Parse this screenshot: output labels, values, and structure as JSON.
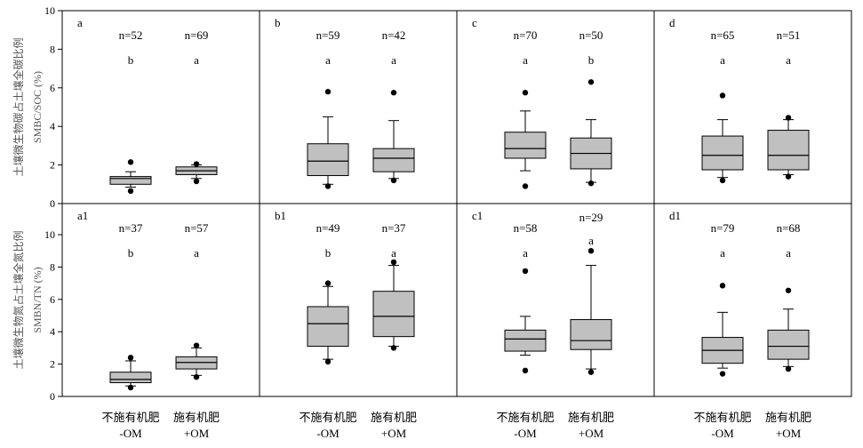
{
  "chart_data": {
    "type": "boxplot",
    "y_ticks": [
      0,
      2,
      4,
      6,
      8,
      10
    ],
    "ylim": [
      0,
      10
    ],
    "box_color": "#c0c0c0",
    "categories": [
      {
        "cn": "不施有机肥",
        "en": "-OM"
      },
      {
        "cn": "施有机肥",
        "en": "+OM"
      }
    ],
    "rows": [
      {
        "ylabel_cn": "土壤微生物碳占土壤全碳比例",
        "ylabel_en": "SMBC/SOC (%)",
        "panels": [
          {
            "label": "a",
            "groups": [
              {
                "n": "n=52",
                "sig": "b",
                "min": 0.85,
                "q1": 1.0,
                "median": 1.3,
                "q3": 1.4,
                "max": 1.65,
                "outliers": [
                  2.15,
                  0.65
                ]
              },
              {
                "n": "n=69",
                "sig": "a",
                "min": 1.3,
                "q1": 1.5,
                "median": 1.7,
                "q3": 1.9,
                "max": 2.0,
                "outliers": [
                  2.05,
                  1.15
                ]
              }
            ]
          },
          {
            "label": "b",
            "groups": [
              {
                "n": "n=59",
                "sig": "a",
                "min": 1.0,
                "q1": 1.45,
                "median": 2.2,
                "q3": 3.1,
                "max": 4.5,
                "outliers": [
                  5.8,
                  0.9
                ]
              },
              {
                "n": "n=42",
                "sig": "a",
                "min": 1.3,
                "q1": 1.65,
                "median": 2.35,
                "q3": 2.85,
                "max": 4.3,
                "outliers": [
                  5.75,
                  1.2
                ]
              }
            ]
          },
          {
            "label": "c",
            "groups": [
              {
                "n": "n=70",
                "sig": "a",
                "min": 1.7,
                "q1": 2.35,
                "median": 2.85,
                "q3": 3.7,
                "max": 4.8,
                "outliers": [
                  5.75,
                  0.9
                ]
              },
              {
                "n": "n=50",
                "sig": "b",
                "min": 1.1,
                "q1": 1.8,
                "median": 2.6,
                "q3": 3.4,
                "max": 4.35,
                "outliers": [
                  6.3,
                  1.05
                ]
              }
            ]
          },
          {
            "label": "d",
            "groups": [
              {
                "n": "n=65",
                "sig": "a",
                "min": 1.35,
                "q1": 1.75,
                "median": 2.5,
                "q3": 3.5,
                "max": 4.35,
                "outliers": [
                  5.6,
                  1.2
                ]
              },
              {
                "n": "n=51",
                "sig": "a",
                "min": 1.5,
                "q1": 1.75,
                "median": 2.5,
                "q3": 3.8,
                "max": 4.35,
                "outliers": [
                  4.45,
                  1.4
                ]
              }
            ]
          }
        ]
      },
      {
        "ylabel_cn": "土壤微生物氮占土壤全氮比例",
        "ylabel_en": "SMBN/TN (%)",
        "panels": [
          {
            "label": "a1",
            "groups": [
              {
                "n": "n=37",
                "sig": "b",
                "min": 0.65,
                "q1": 0.85,
                "median": 1.05,
                "q3": 1.5,
                "max": 2.2,
                "outliers": [
                  2.4,
                  0.55
                ]
              },
              {
                "n": "n=57",
                "sig": "a",
                "min": 1.3,
                "q1": 1.7,
                "median": 2.1,
                "q3": 2.45,
                "max": 3.0,
                "outliers": [
                  3.15,
                  1.2
                ]
              }
            ]
          },
          {
            "label": "b1",
            "groups": [
              {
                "n": "n=49",
                "sig": "b",
                "min": 2.3,
                "q1": 3.1,
                "median": 4.5,
                "q3": 5.55,
                "max": 6.8,
                "outliers": [
                  7.0,
                  2.15
                ]
              },
              {
                "n": "n=37",
                "sig": "a",
                "min": 3.1,
                "q1": 3.7,
                "median": 4.95,
                "q3": 6.5,
                "max": 8.1,
                "outliers": [
                  8.3,
                  3.0
                ]
              }
            ]
          },
          {
            "label": "c1",
            "groups": [
              {
                "n": "n=58",
                "sig": "a",
                "min": 2.55,
                "q1": 2.8,
                "median": 3.55,
                "q3": 4.1,
                "max": 4.95,
                "outliers": [
                  7.75,
                  1.6
                ]
              },
              {
                "n": "n=29",
                "sig": "a",
                "min": 1.7,
                "q1": 2.9,
                "median": 3.45,
                "q3": 4.75,
                "max": 8.1,
                "outliers": [
                  9.0,
                  1.5
                ]
              }
            ]
          },
          {
            "label": "d1",
            "groups": [
              {
                "n": "n=79",
                "sig": "a",
                "min": 1.75,
                "q1": 2.05,
                "median": 2.85,
                "q3": 3.65,
                "max": 5.2,
                "outliers": [
                  6.85,
                  1.4
                ]
              },
              {
                "n": "n=68",
                "sig": "a",
                "min": 1.85,
                "q1": 2.3,
                "median": 3.1,
                "q3": 4.1,
                "max": 5.4,
                "outliers": [
                  6.55,
                  1.7
                ]
              }
            ]
          }
        ]
      }
    ]
  }
}
